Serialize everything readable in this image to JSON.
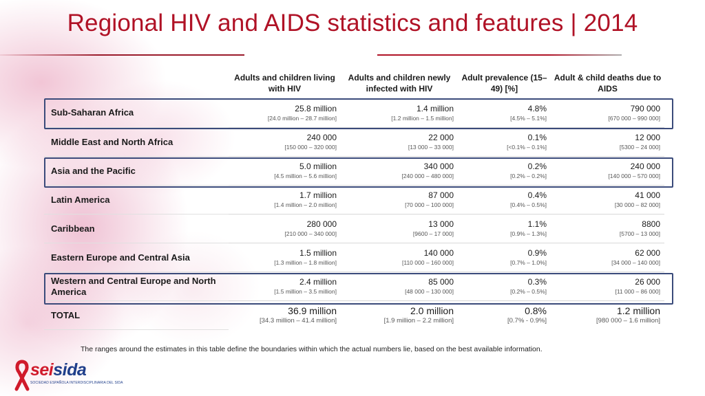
{
  "title": "Regional HIV and AIDS statistics and features  |  2014",
  "headers": [
    "Adults and children living with HIV",
    "Adults and children newly infected with HIV",
    "Adult prevalence (15–49) [%]",
    "Adult & child deaths due to AIDS"
  ],
  "rows": [
    {
      "region": "Sub-Saharan Africa",
      "living": "25.8 million",
      "living_range": "[24.0 million – 28.7 million]",
      "infected": "1.4 million",
      "infected_range": "[1.2 million – 1.5 million]",
      "prevalence": "4.8%",
      "prevalence_range": "[4.5% – 5.1%]",
      "deaths": "790 000",
      "deaths_range": "[670 000 – 990 000]"
    },
    {
      "region": "Middle East and North Africa",
      "living": "240 000",
      "living_range": "[150 000 – 320 000]",
      "infected": "22 000",
      "infected_range": "[13 000 – 33 000]",
      "prevalence": "0.1%",
      "prevalence_range": "[<0.1% – 0.1%]",
      "deaths": "12 000",
      "deaths_range": "[5300 – 24 000]"
    },
    {
      "region": "Asia and the Pacific",
      "living": "5.0 million",
      "living_range": "[4.5 million – 5.6 million]",
      "infected": "340 000",
      "infected_range": "[240 000 – 480 000]",
      "prevalence": "0.2%",
      "prevalence_range": "[0.2% – 0.2%]",
      "deaths": "240 000",
      "deaths_range": "[140 000 – 570 000]"
    },
    {
      "region": "Latin America",
      "living": "1.7 million",
      "living_range": "[1.4 million – 2.0 million]",
      "infected": "87 000",
      "infected_range": "[70 000 – 100 000]",
      "prevalence": "0.4%",
      "prevalence_range": "[0.4% – 0.5%]",
      "deaths": "41 000",
      "deaths_range": "[30 000 – 82 000]"
    },
    {
      "region": "Caribbean",
      "living": "280 000",
      "living_range": "[210 000 – 340 000]",
      "infected": "13 000",
      "infected_range": "[9600 – 17 000]",
      "prevalence": "1.1%",
      "prevalence_range": "[0.9% – 1.3%]",
      "deaths": "8800",
      "deaths_range": "[5700 – 13 000]"
    },
    {
      "region": "Eastern Europe and Central Asia",
      "living": "1.5 million",
      "living_range": "[1.3 million – 1.8 million]",
      "infected": "140 000",
      "infected_range": "[110 000 – 160 000]",
      "prevalence": "0.9%",
      "prevalence_range": "[0.7% – 1.0%]",
      "deaths": "62 000",
      "deaths_range": "[34 000 – 140 000]"
    },
    {
      "region": "Western and Central Europe and North America",
      "living": "2.4 million",
      "living_range": "[1.5 million – 3.5 million]",
      "infected": "85 000",
      "infected_range": "[48 000 – 130 000]",
      "prevalence": "0.3%",
      "prevalence_range": "[0.2% – 0.5%]",
      "deaths": "26 000",
      "deaths_range": "[11 000 – 86 000]"
    }
  ],
  "total": {
    "region": "TOTAL",
    "living": "36.9 million",
    "living_range": "[34.3 million – 41.4 million]",
    "infected": "2.0 million",
    "infected_range": "[1.9 million – 2.2 million]",
    "prevalence": "0.8%",
    "prevalence_range": "[0.7% - 0.9%]",
    "deaths": "1.2 million",
    "deaths_range": "[980 000 – 1.6 million]"
  },
  "footnote": "The ranges around the estimates in this table define the boundaries within which the actual numbers lie, based on the best available information.",
  "logo": {
    "text_red": "sei",
    "text_blue": "sida",
    "subtitle": "SOCIEDAD ESPAÑOLA INTERDISCIPLINARIA DEL SIDA"
  },
  "colors": {
    "title": "#b01226",
    "highlight_box": "#3a4a7a",
    "logo_red": "#d01a2b",
    "logo_blue": "#1f3e8a"
  }
}
